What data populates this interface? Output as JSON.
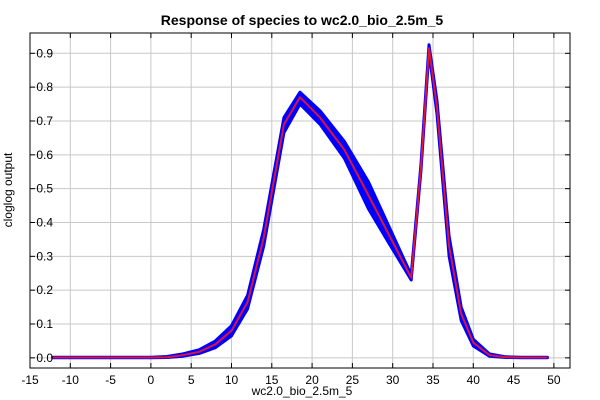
{
  "chart_data": {
    "type": "line",
    "title": "Response of species to wc2.0_bio_2.5m_5",
    "xlabel": "wc2.0_bio_2.5m_5",
    "ylabel": "cloglog output",
    "xlim": [
      -15,
      52
    ],
    "ylim": [
      -0.03,
      0.96
    ],
    "xticks": [
      -15,
      -10,
      -5,
      0,
      5,
      10,
      15,
      20,
      25,
      30,
      35,
      40,
      45,
      50
    ],
    "yticks": [
      0.0,
      0.1,
      0.2,
      0.3,
      0.4,
      0.5,
      0.6,
      0.7,
      0.8,
      0.9
    ],
    "grid": true,
    "series": [
      {
        "role": "variability-band",
        "color": "#0000ff",
        "x": [
          -12.2,
          0,
          2,
          4,
          6,
          8,
          10,
          12,
          14,
          16.5,
          18.5,
          21,
          24,
          27,
          29.5,
          32.3,
          33.5,
          34.5,
          35.5,
          37,
          38.5,
          40,
          42,
          44,
          46,
          49.2
        ],
        "lower": [
          0,
          0,
          0.001,
          0.005,
          0.013,
          0.03,
          0.065,
          0.145,
          0.33,
          0.665,
          0.75,
          0.69,
          0.59,
          0.44,
          0.34,
          0.23,
          0.55,
          0.905,
          0.72,
          0.3,
          0.11,
          0.035,
          0.005,
          0.001,
          0,
          0
        ],
        "upper": [
          0.002,
          0.002,
          0.004,
          0.012,
          0.024,
          0.05,
          0.095,
          0.185,
          0.38,
          0.71,
          0.785,
          0.73,
          0.64,
          0.52,
          0.39,
          0.245,
          0.57,
          0.925,
          0.76,
          0.36,
          0.15,
          0.055,
          0.012,
          0.003,
          0.002,
          0.002
        ]
      },
      {
        "role": "mean",
        "color": "#dc143c",
        "x": [
          -12.2,
          0,
          2,
          4,
          6,
          8,
          10,
          12,
          14,
          16.5,
          18.5,
          21,
          24,
          27,
          29.5,
          32.3,
          33.5,
          34.5,
          35.5,
          37,
          38.5,
          40,
          42,
          44,
          46,
          49.2
        ],
        "y": [
          0.001,
          0.001,
          0.002,
          0.008,
          0.018,
          0.04,
          0.08,
          0.165,
          0.355,
          0.69,
          0.77,
          0.71,
          0.615,
          0.48,
          0.365,
          0.237,
          0.56,
          0.915,
          0.74,
          0.33,
          0.13,
          0.045,
          0.008,
          0.002,
          0.001,
          0.001
        ]
      }
    ]
  }
}
